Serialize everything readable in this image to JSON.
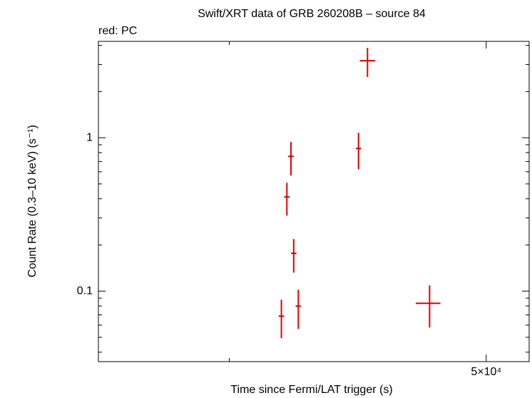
{
  "chart_data": {
    "type": "errorbar-scatter",
    "title": "Swift/XRT data of GRB 260208B – source 84",
    "subtitle": "red: PC",
    "x_label": "Time since Fermi/LAT trigger (s)",
    "y_label": "Count Rate (0.3–10 keV) (s⁻¹)",
    "x_log": true,
    "y_log": true,
    "xlim": [
      35700,
      51900
    ],
    "ylim": [
      0.0347,
      4.25
    ],
    "xticks": [
      {
        "value": 50000,
        "label": "5×10⁴"
      }
    ],
    "x_minor_ticks": [
      40000
    ],
    "yticks": [
      0.1,
      1
    ],
    "y_minor_ticks": [
      0.04,
      0.05,
      0.06,
      0.07,
      0.08,
      0.09,
      0.2,
      0.3,
      0.4,
      0.5,
      0.6,
      0.7,
      0.8,
      0.9,
      2,
      3,
      4
    ],
    "series": [
      {
        "name": "PC",
        "color": "#e00000",
        "x": [
          41850,
          42050,
          42200,
          42300,
          42470,
          44750,
          45100,
          47600
        ],
        "x_low": [
          41750,
          41950,
          42100,
          42200,
          42370,
          44650,
          44800,
          47030
        ],
        "x_high": [
          41950,
          42150,
          42300,
          42400,
          42570,
          44850,
          45400,
          48050
        ],
        "values": [
          0.0687,
          0.411,
          0.757,
          0.1764,
          0.0798,
          0.852,
          3.18,
          0.0833
        ],
        "y_low": [
          0.0493,
          0.311,
          0.567,
          0.132,
          0.0567,
          0.624,
          2.49,
          0.0579
        ],
        "y_high": [
          0.0879,
          0.509,
          0.938,
          0.2186,
          0.1021,
          1.078,
          3.86,
          0.109
        ]
      }
    ]
  }
}
